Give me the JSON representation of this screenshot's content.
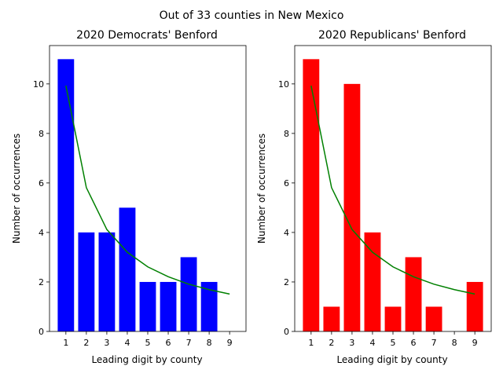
{
  "suptitle": "Out of 33 counties in New Mexico",
  "chart_data": [
    {
      "type": "bar",
      "title": "2020 Democrats' Benford",
      "xlabel": "Leading digit by county",
      "ylabel": "Number of occurrences",
      "categories": [
        1,
        2,
        3,
        4,
        5,
        6,
        7,
        8,
        9
      ],
      "values": [
        11,
        4,
        4,
        5,
        2,
        2,
        3,
        2,
        0
      ],
      "bar_color": "#0000ff",
      "benford_line": [
        9.93,
        5.81,
        4.12,
        3.2,
        2.61,
        2.21,
        1.91,
        1.69,
        1.51
      ],
      "line_color": "#008000",
      "ylim": [
        0,
        11.55
      ],
      "yticks": [
        0,
        2,
        4,
        6,
        8,
        10
      ],
      "xlim": [
        0.2,
        9.8
      ],
      "grid": false
    },
    {
      "type": "bar",
      "title": "2020 Republicans' Benford",
      "xlabel": "Leading digit by county",
      "ylabel": "Number of occurrences",
      "categories": [
        1,
        2,
        3,
        4,
        5,
        6,
        7,
        8,
        9
      ],
      "values": [
        11,
        1,
        10,
        4,
        1,
        3,
        1,
        0,
        2
      ],
      "bar_color": "#ff0000",
      "benford_line": [
        9.93,
        5.81,
        4.12,
        3.2,
        2.61,
        2.21,
        1.91,
        1.69,
        1.51
      ],
      "line_color": "#008000",
      "ylim": [
        0,
        11.55
      ],
      "yticks": [
        0,
        2,
        4,
        6,
        8,
        10
      ],
      "xlim": [
        0.2,
        9.8
      ],
      "grid": false
    }
  ]
}
